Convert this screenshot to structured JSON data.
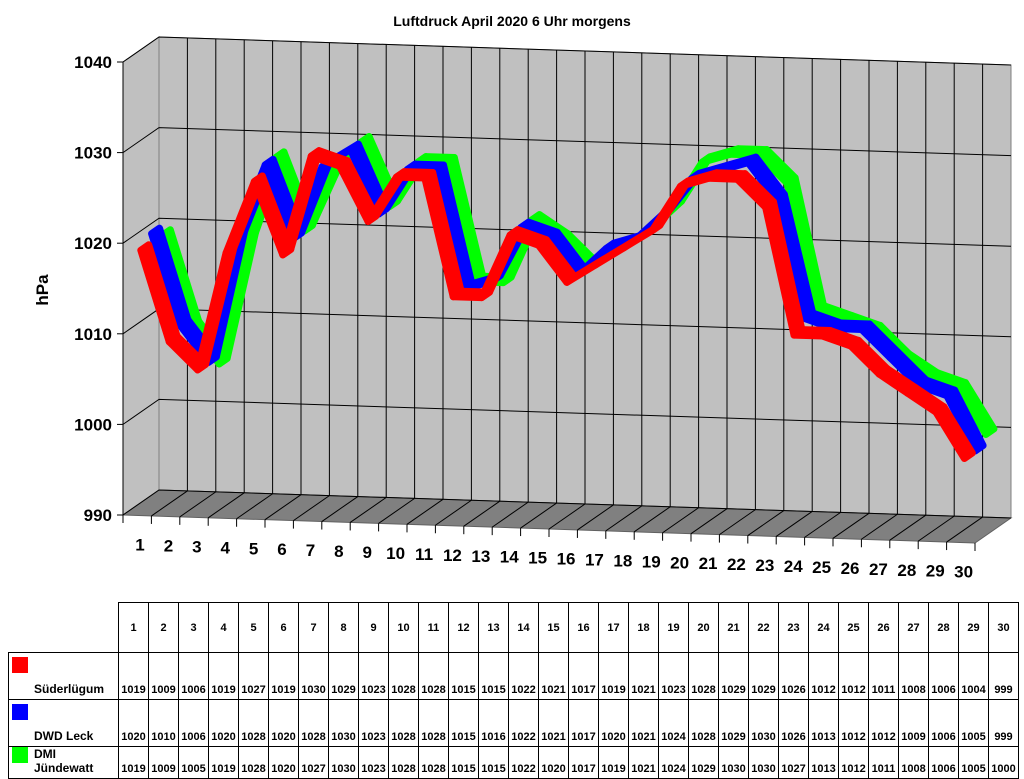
{
  "chart_data": {
    "type": "line",
    "title": "Luftdruck April 2020 6 Uhr morgens",
    "ylabel": "hPa",
    "xlabel": "",
    "ylim": [
      990,
      1040
    ],
    "yticks": [
      "990",
      "1000",
      "1010",
      "1020",
      "1030",
      "1040"
    ],
    "categories": [
      "1",
      "2",
      "3",
      "4",
      "5",
      "6",
      "7",
      "8",
      "9",
      "10",
      "11",
      "12",
      "13",
      "14",
      "15",
      "16",
      "17",
      "18",
      "19",
      "20",
      "21",
      "22",
      "23",
      "24",
      "25",
      "26",
      "27",
      "28",
      "29",
      "30"
    ],
    "grid": true,
    "style": "3d-ribbon",
    "series": [
      {
        "name": "Süderlügum",
        "color": "#ff0000",
        "values": [
          1019,
          1009,
          1006,
          1019,
          1027,
          1019,
          1030,
          1029,
          1023,
          1028,
          1028,
          1015,
          1015,
          1022,
          1021,
          1017,
          1019,
          1021,
          1023,
          1028,
          1029,
          1029,
          1026,
          1012,
          1012,
          1011,
          1008,
          1006,
          1004,
          999
        ]
      },
      {
        "name": "DWD Leck",
        "color": "#0000ff",
        "values": [
          1020,
          1010,
          1006,
          1020,
          1028,
          1020,
          1028,
          1030,
          1023,
          1028,
          1028,
          1015,
          1016,
          1022,
          1021,
          1017,
          1020,
          1021,
          1024,
          1028,
          1029,
          1030,
          1026,
          1013,
          1012,
          1012,
          1009,
          1006,
          1005,
          999
        ]
      },
      {
        "name": "DMI Jündewatt",
        "color": "#00ff00",
        "values": [
          1019,
          1009,
          1005,
          1019,
          1028,
          1020,
          1027,
          1030,
          1023,
          1028,
          1028,
          1015,
          1015,
          1022,
          1020,
          1017,
          1019,
          1021,
          1024,
          1029,
          1030,
          1030,
          1027,
          1013,
          1012,
          1011,
          1008,
          1006,
          1005,
          1000
        ]
      }
    ],
    "colors": {
      "wall": "#c0c0c0",
      "floor": "#808080"
    }
  }
}
